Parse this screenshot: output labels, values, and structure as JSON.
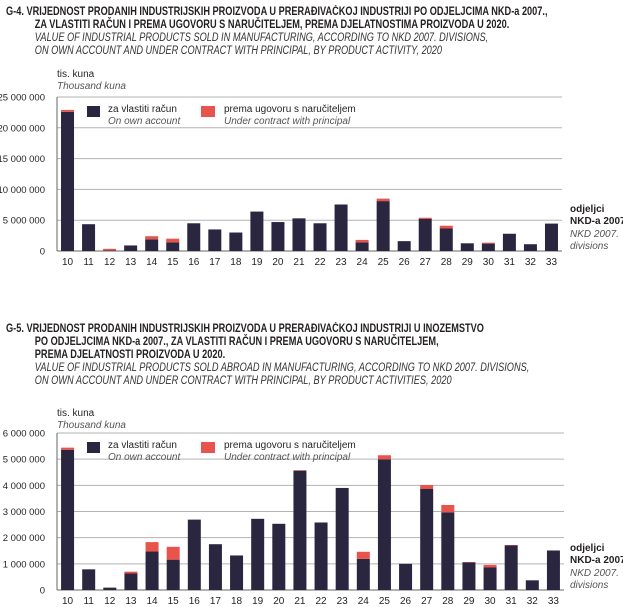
{
  "colors": {
    "own": "#2a2640",
    "contract": "#e8534b",
    "grid": "#b3b3b3"
  },
  "chart_data": [
    {
      "type": "bar",
      "stacked": true,
      "id": "G-4",
      "title_hr": [
        "G-4.  VRIJEDNOST PRODANIH INDUSTRIJSKIH PROIZVODA U PRERAĐIVAČKOJ INDUSTRIJI PO ODJELJCIMA NKD-a 2007.,",
        "ZA VLASTITI RAČUN I PREMA UGOVORU S NARUČITELJEM, PREMA DJELATNOSTIMA PROIZVODA U 2020."
      ],
      "title_en": [
        "VALUE OF INDUSTRIAL PRODUCTS SOLD IN MANUFACTURING, ACCORDING TO NKD 2007. DIVISIONS,",
        "ON OWN ACCOUNT AND UNDER CONTRACT WITH PRINCIPAL, BY PRODUCT ACTIVITY, 2020"
      ],
      "ylabel": "tis. kuna",
      "ylabel_en": "Thousand kuna",
      "xlabel": [
        "odjeljci",
        "NKD-a 2007."
      ],
      "xlabel_en": [
        "NKD 2007.",
        "divisions"
      ],
      "ylim": [
        0,
        25000000
      ],
      "yticks": [
        0,
        5000000,
        10000000,
        15000000,
        20000000,
        25000000
      ],
      "ytick_labels": [
        "0",
        "5 000 000",
        "10 000 000",
        "15 000 000",
        "20 000 000",
        "25 000 000"
      ],
      "grid": true,
      "legend_placement": "top-left",
      "categories": [
        "10",
        "11",
        "12",
        "13",
        "14",
        "15",
        "16",
        "17",
        "18",
        "19",
        "20",
        "21",
        "22",
        "23",
        "24",
        "25",
        "26",
        "27",
        "28",
        "29",
        "30",
        "31",
        "32",
        "33"
      ],
      "series": [
        {
          "name": "za vlastiti račun",
          "name_en": "On own account",
          "values": [
            22600000,
            4350000,
            100000,
            900000,
            1900000,
            1400000,
            4500000,
            3500000,
            3000000,
            6400000,
            4700000,
            5300000,
            4500000,
            7550000,
            1400000,
            8100000,
            1600000,
            5200000,
            3650000,
            1250000,
            1200000,
            2800000,
            1100000,
            4450000
          ]
        },
        {
          "name": "prema ugovoru s naručiteljem",
          "name_en": "Under contract with principal",
          "values": [
            300000,
            0,
            250000,
            0,
            500000,
            600000,
            0,
            0,
            0,
            0,
            0,
            0,
            0,
            0,
            400000,
            400000,
            0,
            200000,
            450000,
            0,
            150000,
            0,
            0,
            0
          ]
        }
      ]
    },
    {
      "type": "bar",
      "stacked": true,
      "id": "G-5",
      "title_hr": [
        "G-5.  VRIJEDNOST PRODANIH INDUSTRIJSKIH PROIZVODA U PRERAĐIVAČKOJ INDUSTRIJI U INOZEMSTVO",
        "PO ODJELJCIMA NKD-a 2007., ZA VLASTITI RAČUN I PREMA UGOVORU S NARUČITELJEM,",
        "PREMA DJELATNOSTI PROIZVODA U 2020."
      ],
      "title_en": [
        "VALUE OF INDUSTRIAL PRODUCTS SOLD ABROAD IN MANUFACTURING, ACCORDING TO NKD 2007. DIVISIONS,",
        "ON OWN ACCOUNT AND UNDER CONTRACT WITH PRINCIPAL, BY PRODUCT ACTIVITIES, 2020"
      ],
      "ylabel": "tis. kuna",
      "ylabel_en": "Thousand kuna",
      "xlabel": [
        "odjeljci",
        "NKD-a 2007."
      ],
      "xlabel_en": [
        "NKD 2007.",
        "divisions"
      ],
      "ylim": [
        0,
        6000000
      ],
      "yticks": [
        0,
        1000000,
        2000000,
        3000000,
        4000000,
        5000000,
        6000000
      ],
      "ytick_labels": [
        "0",
        "1 000 000",
        "2 000 000",
        "3 000 000",
        "4 000 000",
        "5 000 000",
        "6 000 000"
      ],
      "grid": true,
      "legend_placement": "top-left",
      "categories": [
        "10",
        "11",
        "12",
        "13",
        "14",
        "15",
        "16",
        "17",
        "18",
        "19",
        "20",
        "21",
        "22",
        "23",
        "24",
        "25",
        "26",
        "27",
        "28",
        "29",
        "30",
        "31",
        "32",
        "33"
      ],
      "series": [
        {
          "name": "za vlastiti račun",
          "name_en": "On own account",
          "values": [
            5360000,
            790000,
            90000,
            630000,
            1470000,
            1160000,
            2690000,
            1750000,
            1320000,
            2720000,
            2530000,
            4560000,
            2580000,
            3900000,
            1190000,
            4990000,
            1000000,
            3860000,
            2970000,
            1050000,
            860000,
            1700000,
            370000,
            1510000
          ]
        },
        {
          "name": "prema ugovoru s naručiteljem",
          "name_en": "Under contract with principal",
          "values": [
            80000,
            0,
            0,
            70000,
            360000,
            490000,
            0,
            0,
            0,
            0,
            0,
            20000,
            0,
            0,
            270000,
            160000,
            0,
            150000,
            280000,
            20000,
            100000,
            20000,
            0,
            0
          ]
        }
      ]
    }
  ]
}
